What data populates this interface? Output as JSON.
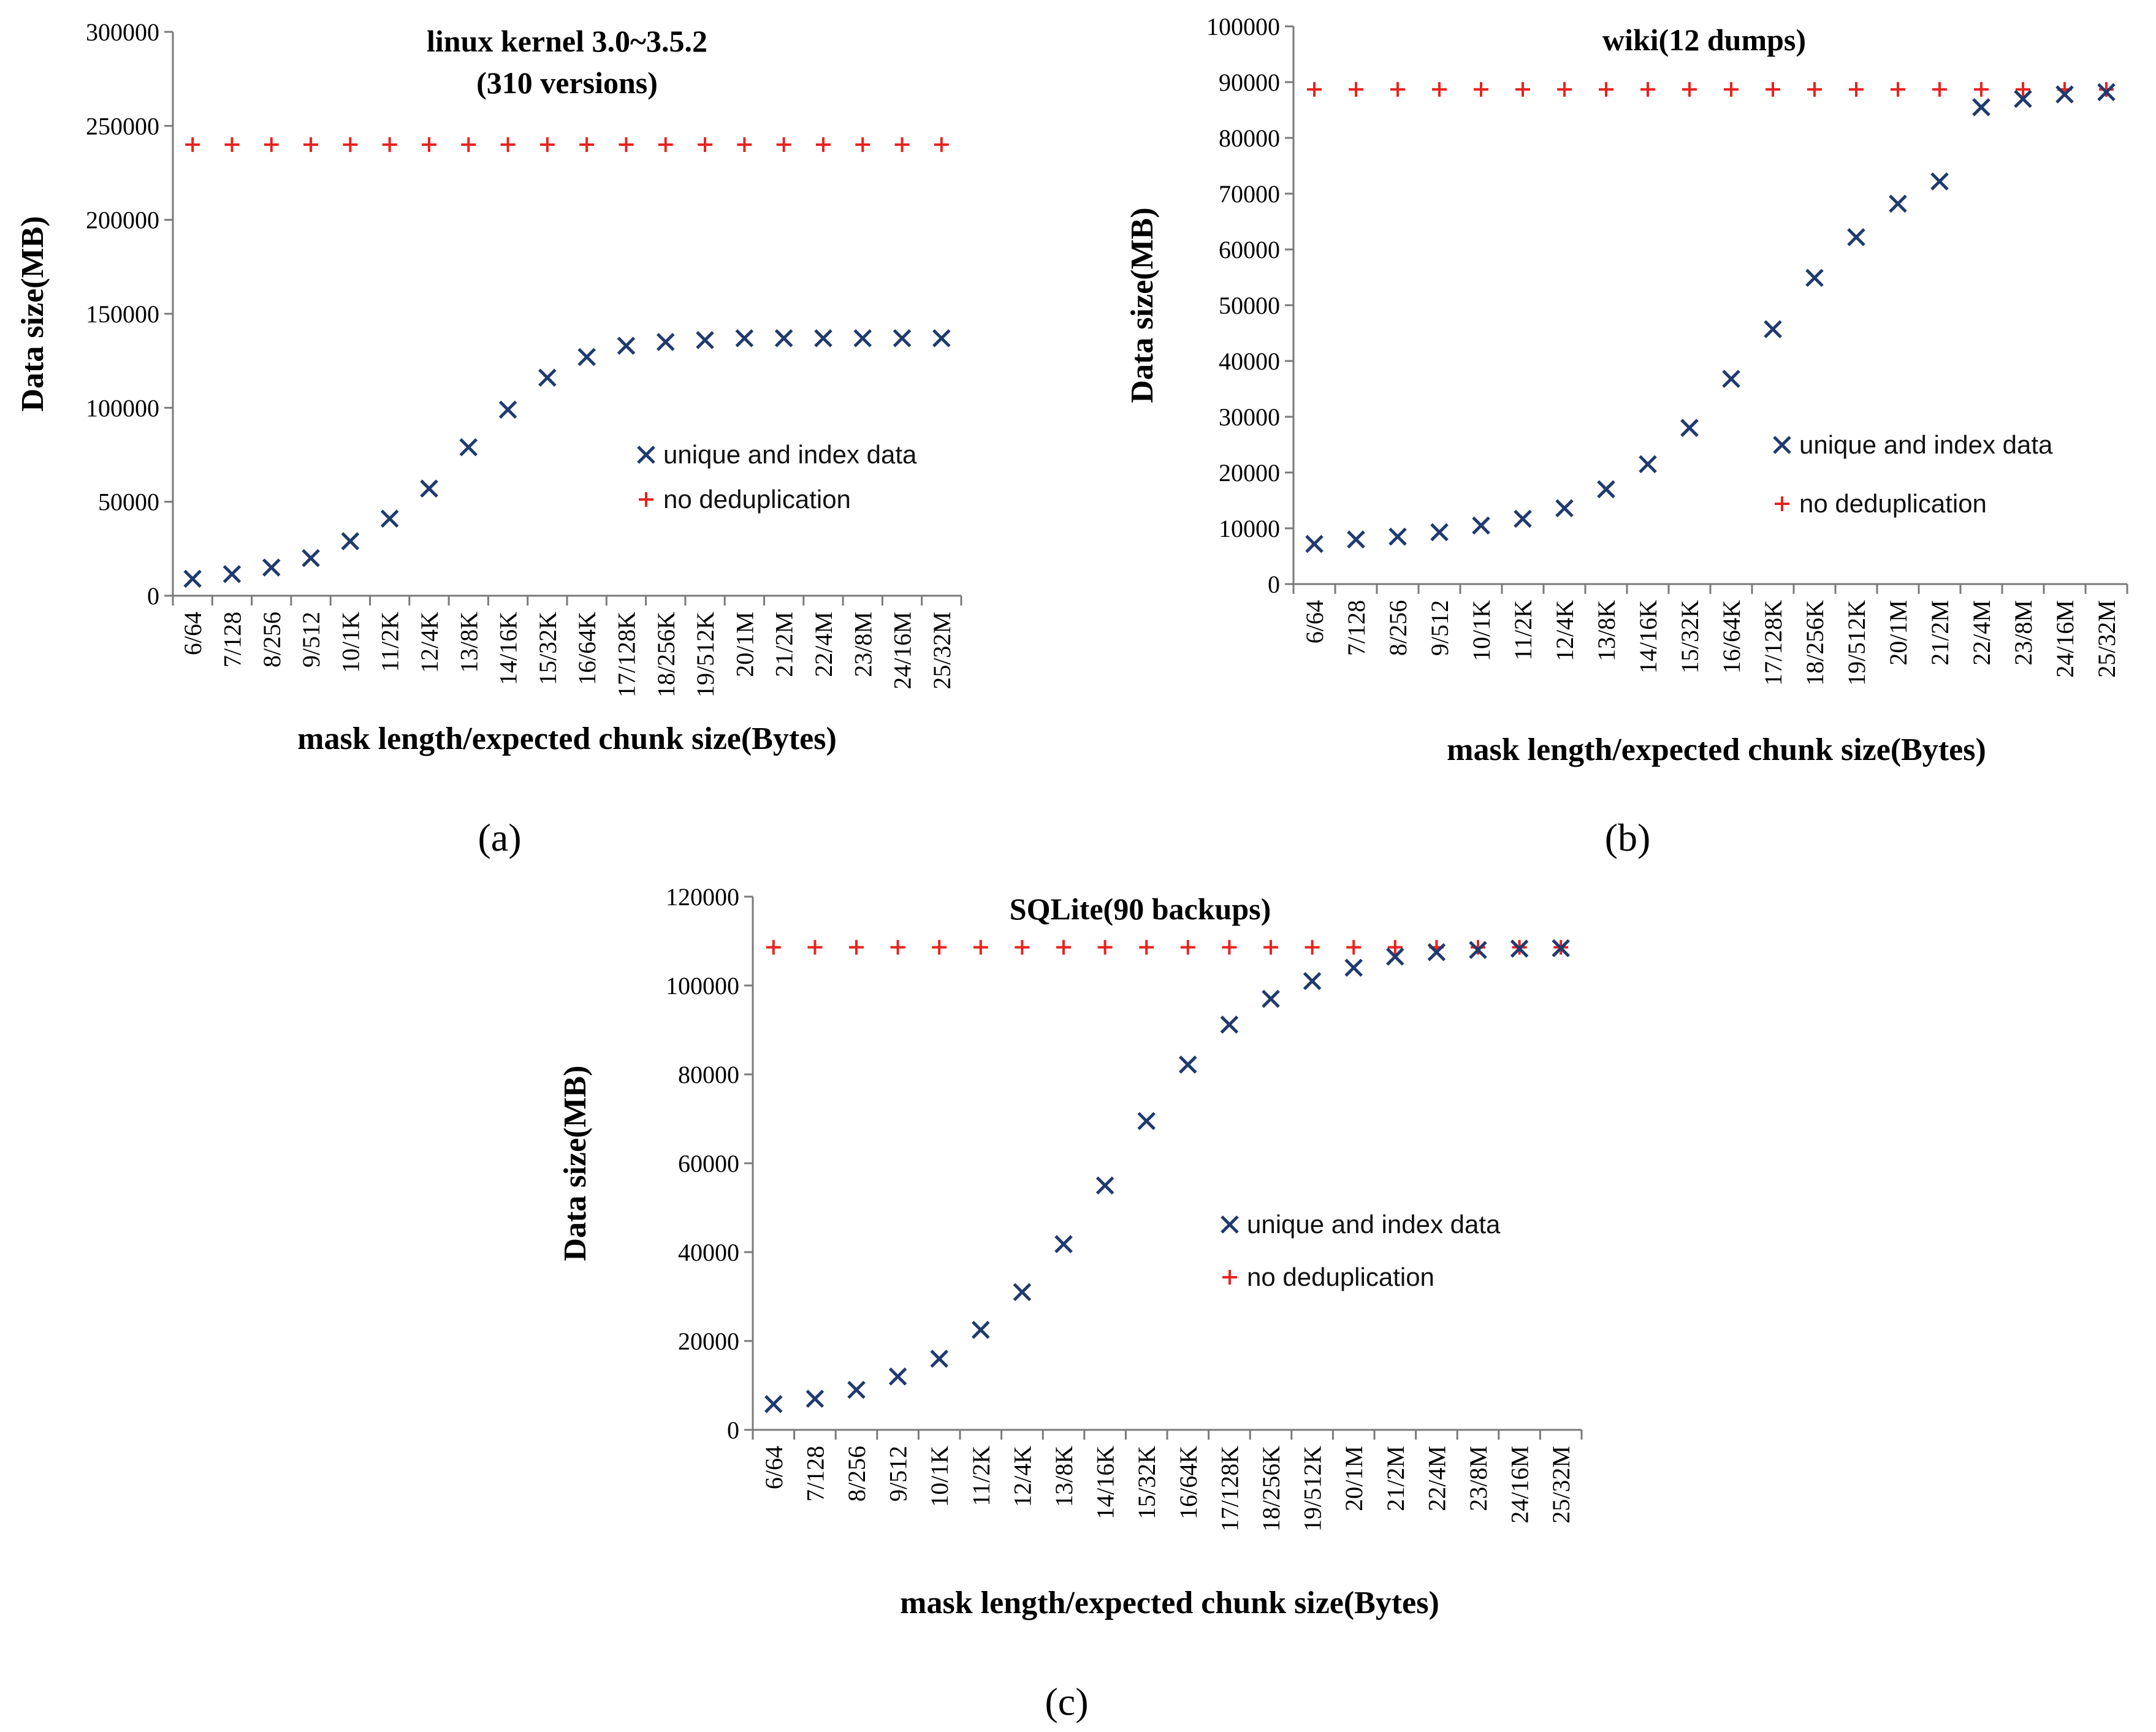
{
  "colors": {
    "unique": "#1f3a6e",
    "nodedup": "#e8231f",
    "axis": "#7a7a7a"
  },
  "chart_data": [
    {
      "type": "scatter",
      "panel_label": "(a)",
      "title_lines": [
        "linux kernel 3.0~3.5.2",
        "(310 versions)"
      ],
      "xlabel": "mask length/expected chunk size(Bytes)",
      "ylabel": "Data size(MB)",
      "ylim": [
        0,
        300000
      ],
      "yticks": [
        "0",
        "50000",
        "100000",
        "150000",
        "200000",
        "250000",
        "300000"
      ],
      "categories": [
        "6/64",
        "7/128",
        "8/256",
        "9/512",
        "10/1K",
        "11/2K",
        "12/4K",
        "13/8K",
        "14/16K",
        "15/32K",
        "16/64K",
        "17/128K",
        "18/256K",
        "19/512K",
        "20/1M",
        "21/2M",
        "22/4M",
        "23/8M",
        "24/16M",
        "25/32M"
      ],
      "legend_position": "middle-right",
      "series": [
        {
          "name": "unique and index data",
          "marker": "x",
          "values": [
            9000,
            11500,
            15000,
            20000,
            29000,
            41000,
            57000,
            79000,
            99000,
            116000,
            127000,
            133000,
            135000,
            136000,
            137000,
            137000,
            137000,
            137000,
            137000,
            137000
          ]
        },
        {
          "name": "no deduplication",
          "marker": "+",
          "values": [
            240000,
            240000,
            240000,
            240000,
            240000,
            240000,
            240000,
            240000,
            240000,
            240000,
            240000,
            240000,
            240000,
            240000,
            240000,
            240000,
            240000,
            240000,
            240000,
            240000
          ]
        }
      ]
    },
    {
      "type": "scatter",
      "panel_label": "(b)",
      "title_lines": [
        "wiki(12 dumps)"
      ],
      "xlabel": "mask length/expected chunk size(Bytes)",
      "ylabel": "Data size(MB)",
      "ylim": [
        0,
        100000
      ],
      "yticks": [
        "0",
        "10000",
        "20000",
        "30000",
        "40000",
        "50000",
        "60000",
        "70000",
        "80000",
        "90000",
        "100000"
      ],
      "categories": [
        "6/64",
        "7/128",
        "8/256",
        "9/512",
        "10/1K",
        "11/2K",
        "12/4K",
        "13/8K",
        "14/16K",
        "15/32K",
        "16/64K",
        "17/128K",
        "18/256K",
        "19/512K",
        "20/1M",
        "21/2M",
        "22/4M",
        "23/8M",
        "24/16M",
        "25/32M"
      ],
      "legend_position": "middle-right",
      "series": [
        {
          "name": "unique and index data",
          "marker": "x",
          "values": [
            7200,
            8000,
            8500,
            9300,
            10500,
            11700,
            13600,
            17000,
            21500,
            28000,
            36800,
            45700,
            54900,
            62200,
            68200,
            72200,
            85500,
            87000,
            87800,
            88200
          ]
        },
        {
          "name": "no deduplication",
          "marker": "+",
          "values": [
            88700,
            88700,
            88700,
            88700,
            88700,
            88700,
            88700,
            88700,
            88700,
            88700,
            88700,
            88700,
            88700,
            88700,
            88700,
            88700,
            88700,
            88700,
            88700,
            88700
          ]
        }
      ]
    },
    {
      "type": "scatter",
      "panel_label": "(c)",
      "title_lines": [
        "SQLite(90 backups)"
      ],
      "xlabel": "mask length/expected chunk size(Bytes)",
      "ylabel": "Data size(MB)",
      "ylim": [
        0,
        120000
      ],
      "yticks": [
        "0",
        "20000",
        "40000",
        "60000",
        "80000",
        "100000",
        "120000"
      ],
      "categories": [
        "6/64",
        "7/128",
        "8/256",
        "9/512",
        "10/1K",
        "11/2K",
        "12/4K",
        "13/8K",
        "14/16K",
        "15/32K",
        "16/64K",
        "17/128K",
        "18/256K",
        "19/512K",
        "20/1M",
        "21/2M",
        "22/4M",
        "23/8M",
        "24/16M",
        "25/32M"
      ],
      "legend_position": "middle-right",
      "series": [
        {
          "name": "unique and index data",
          "marker": "x",
          "values": [
            5800,
            7000,
            9000,
            12000,
            16000,
            22500,
            31000,
            41800,
            55000,
            69500,
            82200,
            91200,
            97000,
            101000,
            104000,
            106500,
            107500,
            108000,
            108300,
            108400
          ]
        },
        {
          "name": "no deduplication",
          "marker": "+",
          "values": [
            108600,
            108600,
            108600,
            108600,
            108600,
            108600,
            108600,
            108600,
            108600,
            108600,
            108600,
            108600,
            108600,
            108600,
            108600,
            108600,
            108600,
            108600,
            108600,
            108600
          ]
        }
      ]
    }
  ]
}
